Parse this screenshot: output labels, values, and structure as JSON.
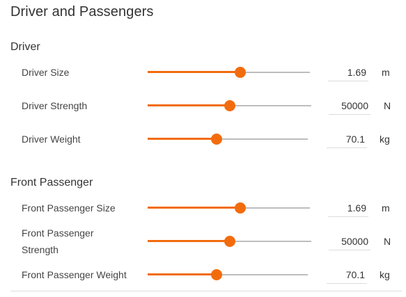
{
  "panel": {
    "title": "Driver and Passengers"
  },
  "sections": [
    {
      "title": "Driver",
      "rows": [
        {
          "label": "Driver Size",
          "value": "1.69",
          "unit": "m",
          "level": 0.57
        },
        {
          "label": "Driver Strength",
          "value": "50000",
          "unit": "N",
          "level": 0.5
        },
        {
          "label": "Driver Weight",
          "value": "70.1",
          "unit": "kg",
          "level": 0.43
        }
      ]
    },
    {
      "title": "Front Passenger",
      "rows": [
        {
          "label": "Front Passenger Size",
          "value": "1.69",
          "unit": "m",
          "level": 0.57
        },
        {
          "label": "Front Passenger Strength",
          "value": "50000",
          "unit": "N",
          "level": 0.5
        },
        {
          "label": "Front Passenger Weight",
          "value": "70.1",
          "unit": "kg",
          "level": 0.43
        }
      ]
    }
  ],
  "colors": {
    "accent": "#f26c0d",
    "track": "#bdbdbd",
    "text": "#333333"
  }
}
